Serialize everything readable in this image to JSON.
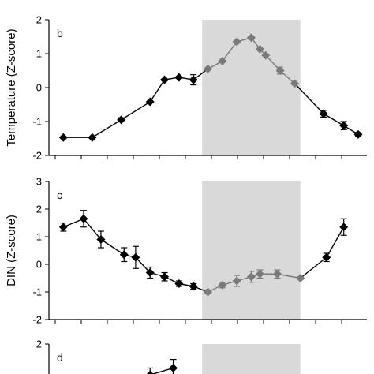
{
  "chart_data": [
    {
      "type": "line",
      "panel": "b",
      "ylabel": "Temperature (Z-score)",
      "ylim": [
        -2,
        2
      ],
      "yticks": [
        "-2",
        "-1",
        "0",
        "1",
        "2"
      ],
      "x": [
        1,
        2,
        3,
        4,
        4.5,
        5,
        5.5,
        6,
        6.5,
        7,
        7.5,
        7.8,
        8,
        8.5,
        9,
        10,
        10.7,
        11.2
      ],
      "y": [
        -1.47,
        -1.47,
        -0.95,
        -0.42,
        0.23,
        0.3,
        0.23,
        0.55,
        0.78,
        1.35,
        1.47,
        1.13,
        0.95,
        0.5,
        0.12,
        -0.77,
        -1.12,
        -1.38
      ],
      "err": [
        0,
        0,
        0.06,
        0,
        0,
        0,
        0.15,
        0,
        0,
        0,
        0.05,
        0,
        0,
        0.1,
        0,
        0.1,
        0.12,
        0.06
      ],
      "shaded_range": [
        5.8,
        9.2
      ]
    },
    {
      "type": "line",
      "panel": "c",
      "ylabel": "DIN (Z-score)",
      "ylim": [
        -2,
        3
      ],
      "yticks": [
        "-2",
        "-1",
        "0",
        "1",
        "2",
        "3"
      ],
      "x": [
        1,
        1.7,
        2.3,
        3.1,
        3.5,
        4,
        4.5,
        5,
        5.5,
        6,
        6.5,
        7,
        7.5,
        7.8,
        8.4,
        9.2,
        10.1,
        10.7
      ],
      "y": [
        1.35,
        1.65,
        0.9,
        0.35,
        0.25,
        -0.3,
        -0.45,
        -0.7,
        -0.8,
        -1.0,
        -0.75,
        -0.6,
        -0.45,
        -0.35,
        -0.35,
        -0.5,
        0.25,
        1.35
      ],
      "err": [
        0.15,
        0.3,
        0.3,
        0.25,
        0.4,
        0.2,
        0.15,
        0.1,
        0.1,
        0.05,
        0.1,
        0.2,
        0.2,
        0.15,
        0.15,
        0.05,
        0.15,
        0.3
      ],
      "shaded_range": [
        5.8,
        9.2
      ]
    },
    {
      "type": "line",
      "panel": "d",
      "ylabel": "",
      "ylim": [
        -2,
        2
      ],
      "yticks": [
        "2"
      ],
      "x": [
        4.0,
        4.8
      ],
      "y": [
        1.1,
        1.3
      ],
      "err": [
        0.2,
        0.25
      ],
      "shaded_range": [
        5.8,
        9.2
      ]
    }
  ],
  "x_axis": {
    "min": 0.5,
    "max": 11.5
  }
}
